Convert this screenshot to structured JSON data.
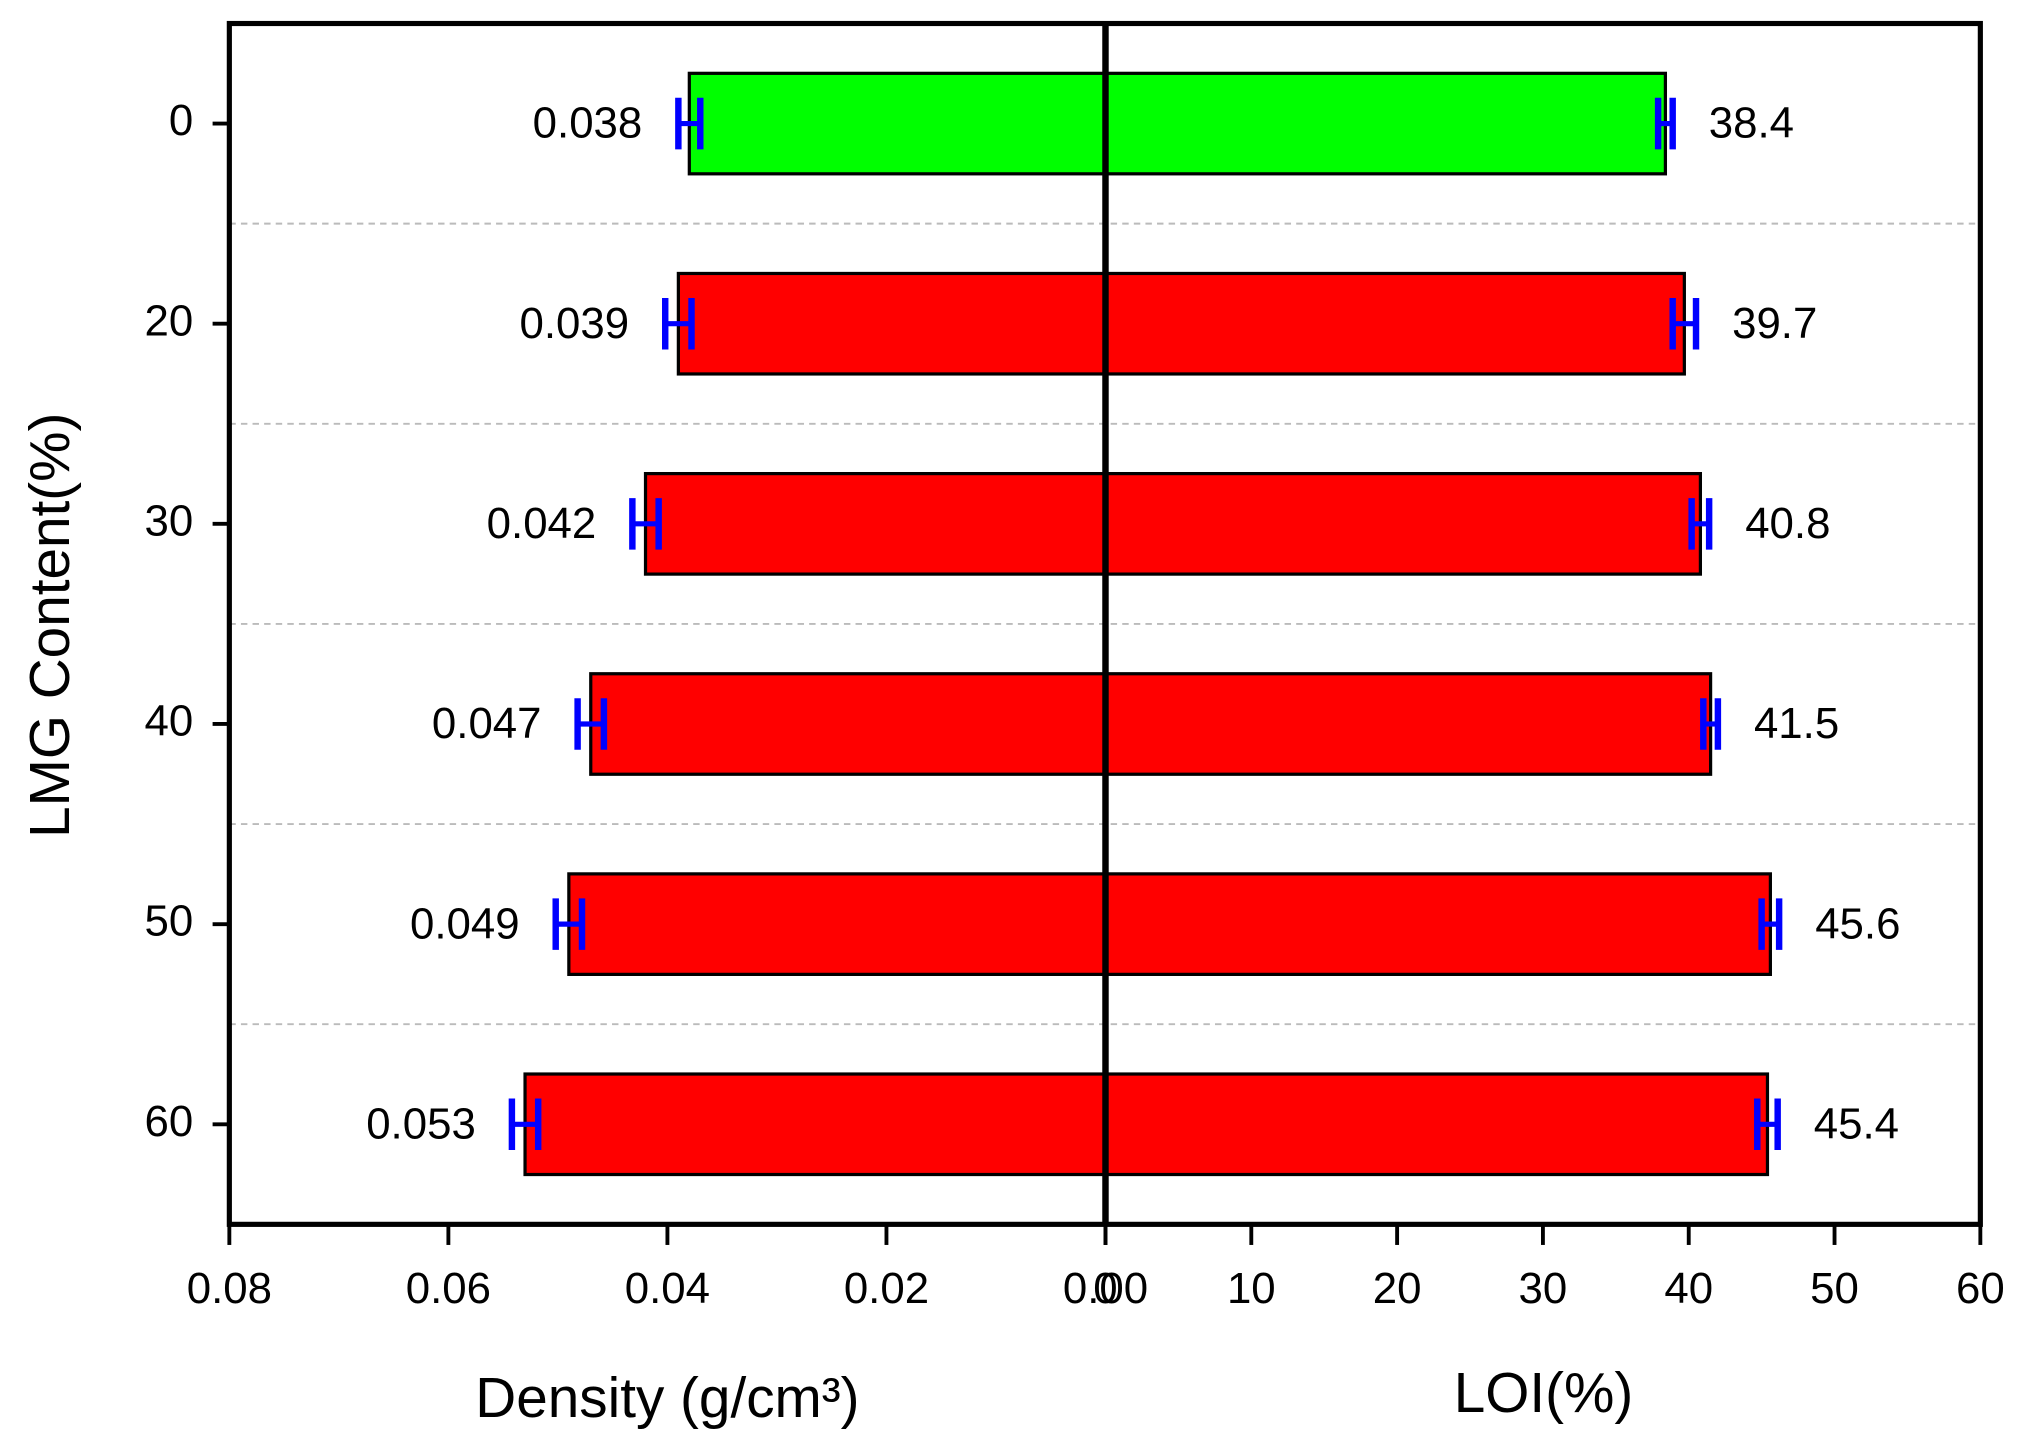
{
  "chart_data": [
    {
      "type": "bar",
      "orientation": "horizontal",
      "ylabel": "LMG Content(%)",
      "categories": [
        "0",
        "20",
        "30",
        "40",
        "50",
        "60"
      ],
      "xlabel": "Density (g/cm³)",
      "values": [
        0.038,
        0.039,
        0.042,
        0.047,
        0.049,
        0.053
      ],
      "errors": [
        0.001,
        0.0012,
        0.0012,
        0.0012,
        0.0012,
        0.0012
      ],
      "colors": [
        "#00ff00",
        "#ff0000",
        "#ff0000",
        "#ff0000",
        "#ff0000",
        "#ff0000"
      ],
      "error_color": "#0000ff",
      "xlim": [
        0.08,
        0
      ],
      "xticks": [
        0.08,
        0.06,
        0.04,
        0.02,
        {
          "value": 0,
          "label": "0.00"
        }
      ]
    },
    {
      "type": "bar",
      "orientation": "horizontal",
      "xlabel": "LOI(%)",
      "values": [
        38.4,
        39.7,
        40.8,
        41.5,
        45.6,
        45.4
      ],
      "errors": [
        0.5,
        0.8,
        0.6,
        0.5,
        0.6,
        0.7
      ],
      "colors": [
        "#00ff00",
        "#ff0000",
        "#ff0000",
        "#ff0000",
        "#ff0000",
        "#ff0000"
      ],
      "error_color": "#0000ff",
      "xlim": [
        0,
        60
      ],
      "xticks": [
        0,
        10,
        20,
        30,
        40,
        50,
        60
      ]
    }
  ]
}
